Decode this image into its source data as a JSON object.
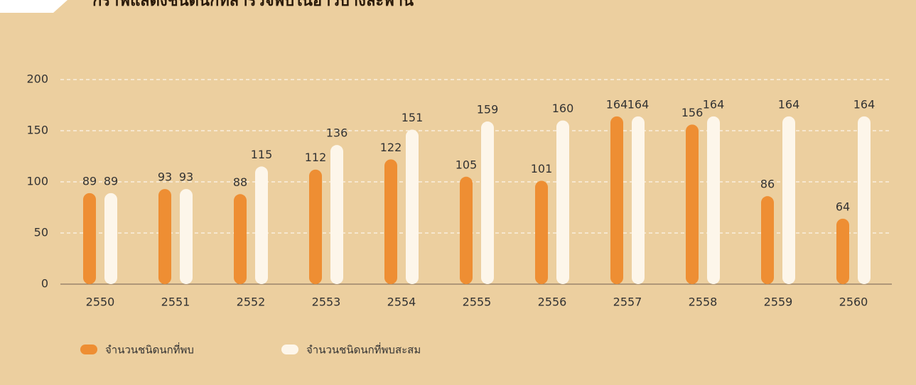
{
  "chart_data": {
    "type": "bar",
    "title": "กราฟแสดงชนิดนกที่สำรวจพบในอ่าวบางละพาน",
    "categories": [
      "2550",
      "2551",
      "2552",
      "2553",
      "2554",
      "2555",
      "2556",
      "2557",
      "2558",
      "2559",
      "2560"
    ],
    "series": [
      {
        "name": "จำนวนชนิดนกที่พบ",
        "color": "#ee8e33",
        "values": [
          89,
          93,
          88,
          112,
          122,
          105,
          101,
          164,
          156,
          86,
          64
        ]
      },
      {
        "name": "จำนวนชนิดนกที่พบสะสม",
        "color": "#fdf6ea",
        "values": [
          89,
          93,
          115,
          136,
          151,
          159,
          160,
          164,
          164,
          164,
          164
        ]
      }
    ],
    "ylim": [
      0,
      200
    ],
    "yticks": [
      0,
      50,
      100,
      150,
      200
    ],
    "grid": true
  }
}
